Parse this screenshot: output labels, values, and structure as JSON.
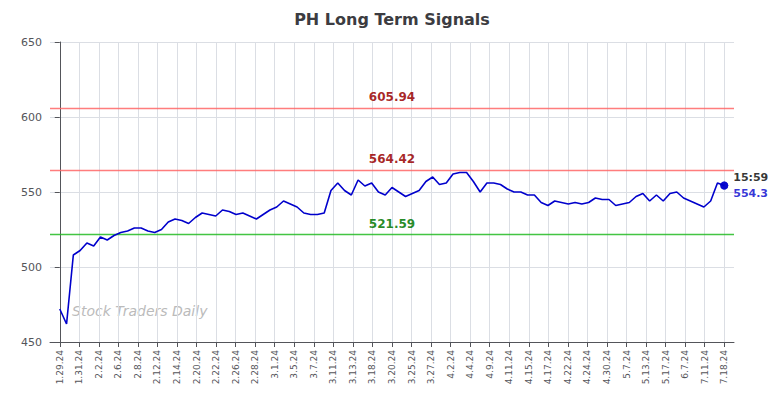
{
  "chart_data": {
    "type": "line",
    "title": "PH Long Term Signals",
    "watermark": "Stock Traders Daily",
    "x": [
      0,
      0.346939,
      0.693878,
      1.040816,
      1.387755,
      1.734694,
      2.081633,
      2.428571,
      2.77551,
      3.122449,
      3.469388,
      3.816327,
      4.163265,
      4.510204,
      4.857143,
      5.204082,
      5.55102,
      5.897959,
      6.244898,
      6.591837,
      6.938776,
      7.285714,
      7.632653,
      7.979592,
      8.326531,
      8.673469,
      9.020408,
      9.367347,
      9.714286,
      10.061224,
      10.408163,
      10.755102,
      11.102041,
      11.44898,
      11.795918,
      12.142857,
      12.489796,
      12.836735,
      13.183673,
      13.530612,
      13.877551,
      14.22449,
      14.571429,
      14.918367,
      15.265306,
      15.612245,
      15.959184,
      16.306122,
      16.653061,
      17,
      17.346939,
      17.693878,
      18.040816,
      18.387755,
      18.734694,
      19.081633,
      19.428571,
      19.77551,
      20.122449,
      20.469388,
      20.816327,
      21.163265,
      21.510204,
      21.857143,
      22.204082,
      22.55102,
      22.897959,
      23.244898,
      23.591837,
      23.938776,
      24.285714,
      24.632653,
      24.979592,
      25.326531,
      25.673469,
      26.020408,
      26.367347,
      26.714286,
      27.061224,
      27.408163,
      27.755102,
      28.102041,
      28.44898,
      28.795918,
      29.142857,
      29.489796,
      29.836735,
      30.183673,
      30.530612,
      30.877551,
      31.22449,
      31.571429,
      31.918367,
      32.265306,
      32.612245,
      32.959184,
      33.306122,
      33.653061,
      34
    ],
    "values": [
      472,
      462,
      508,
      511,
      516,
      514,
      520,
      518,
      521,
      523,
      524,
      526,
      526,
      524,
      523,
      525,
      530,
      532,
      531,
      529,
      533,
      536,
      535,
      534,
      538,
      537,
      535,
      536,
      534,
      532,
      535,
      538,
      540,
      544,
      542,
      540,
      536,
      535,
      535,
      536,
      551,
      556,
      551,
      548,
      558,
      554,
      556,
      550,
      548,
      553,
      550,
      547,
      549,
      551,
      557,
      560,
      555,
      556,
      562,
      563,
      563,
      557,
      550,
      556,
      556,
      555,
      552,
      550,
      550,
      548,
      548,
      543,
      541,
      544,
      543,
      542,
      543,
      542,
      543,
      546,
      545,
      545,
      541,
      542,
      543,
      547,
      549,
      544,
      548,
      544,
      549,
      550,
      546,
      544,
      542,
      540,
      544,
      556,
      554.3
    ],
    "color": "#0000cc",
    "xlim": [
      -0.5,
      34.5
    ],
    "xticks": [
      {
        "value": 0,
        "label": "1.29.24"
      },
      {
        "value": 1,
        "label": "1.31.24"
      },
      {
        "value": 2,
        "label": "2.2.24"
      },
      {
        "value": 3,
        "label": "2.6.24"
      },
      {
        "value": 4,
        "label": "2.8.24"
      },
      {
        "value": 5,
        "label": "2.12.24"
      },
      {
        "value": 6,
        "label": "2.14.24"
      },
      {
        "value": 7,
        "label": "2.20.24"
      },
      {
        "value": 8,
        "label": "2.22.24"
      },
      {
        "value": 9,
        "label": "2.26.24"
      },
      {
        "value": 10,
        "label": "2.28.24"
      },
      {
        "value": 11,
        "label": "3.1.24"
      },
      {
        "value": 12,
        "label": "3.5.24"
      },
      {
        "value": 13,
        "label": "3.7.24"
      },
      {
        "value": 14,
        "label": "3.11.24"
      },
      {
        "value": 15,
        "label": "3.13.24"
      },
      {
        "value": 16,
        "label": "3.18.24"
      },
      {
        "value": 17,
        "label": "3.20.24"
      },
      {
        "value": 18,
        "label": "3.25.24"
      },
      {
        "value": 19,
        "label": "3.27.24"
      },
      {
        "value": 20,
        "label": "4.2.24"
      },
      {
        "value": 21,
        "label": "4.4.24"
      },
      {
        "value": 22,
        "label": "4.9.24"
      },
      {
        "value": 23,
        "label": "4.11.24"
      },
      {
        "value": 24,
        "label": "4.15.24"
      },
      {
        "value": 25,
        "label": "4.17.24"
      },
      {
        "value": 26,
        "label": "4.22.24"
      },
      {
        "value": 27,
        "label": "4.24.24"
      },
      {
        "value": 28,
        "label": "4.30.24"
      },
      {
        "value": 29,
        "label": "5.7.24"
      },
      {
        "value": 30,
        "label": "5.13.24"
      },
      {
        "value": 31,
        "label": "5.17.24"
      },
      {
        "value": 32,
        "label": "6.7.24"
      },
      {
        "value": 33,
        "label": "7.11.24"
      },
      {
        "value": 34,
        "label": "7.18.24"
      }
    ],
    "ylim": [
      450,
      650
    ],
    "yticks": [
      450,
      500,
      550,
      600,
      650
    ],
    "grid": true,
    "hlines": [
      {
        "value": 605.94,
        "label": "605.94",
        "color": "#ff6666",
        "label_color": "#990000"
      },
      {
        "value": 564.42,
        "label": "564.42",
        "color": "#ff6666",
        "label_color": "#990000"
      },
      {
        "value": 521.59,
        "label": "521.59",
        "color": "#22bb22",
        "label_color": "#007700"
      }
    ],
    "last_point_labels": [
      "15:59",
      "554.3"
    ]
  }
}
